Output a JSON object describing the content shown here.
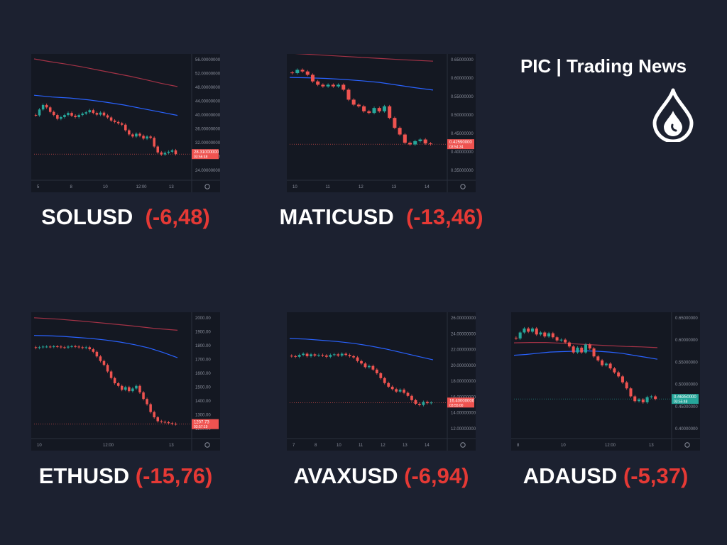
{
  "brand": {
    "title": "PIC | Trading News",
    "logo_icon": "flame-drop-icon"
  },
  "colors": {
    "background": "#1c2130",
    "panel": "#141822",
    "up": "#26a69a",
    "down": "#ef5350",
    "ma_fast": "#2962ff",
    "ma_slow": "#a33246",
    "change_text": "#e53935"
  },
  "chart_data": [
    {
      "type": "candlestick",
      "symbol": "SOLUSD",
      "change": "(-6,48)",
      "x_ticks": [
        "5",
        "8",
        "10",
        "12:00",
        "13"
      ],
      "y_ticks": [
        "56.00000000",
        "52.00000000",
        "48.00000000",
        "44.00000000",
        "40.00000000",
        "36.00000000",
        "32.00000000",
        "28.00000000",
        "24.00000000"
      ],
      "ylim": [
        22,
        56
      ],
      "price_label": "28.31000000",
      "countdown": "03:56:48",
      "price_label_color": "#ef5350",
      "last_price": 28.31,
      "closes": [
        39.5,
        41.2,
        42.5,
        41.8,
        40.5,
        39.6,
        38.5,
        39.0,
        39.6,
        40.2,
        39.4,
        39.0,
        39.6,
        40.0,
        40.4,
        41.0,
        40.2,
        39.7,
        40.3,
        39.5,
        38.9,
        38.0,
        37.6,
        37.2,
        36.8,
        35.2,
        34.0,
        33.4,
        34.2,
        33.6,
        32.8,
        33.4,
        33.0,
        30.5,
        28.8,
        28.2,
        28.7,
        29.0,
        29.4,
        28.31
      ],
      "ma_fast": [
        45.3,
        44.8,
        44.5,
        44.0,
        43.3,
        42.5,
        41.5,
        40.5,
        39.5
      ],
      "ma_slow": [
        55.8,
        55.0,
        54.3,
        53.5,
        52.6,
        51.7,
        50.8,
        49.8,
        48.7,
        47.8
      ]
    },
    {
      "type": "candlestick",
      "symbol": "MATICUSD",
      "change": "(-13,46)",
      "x_ticks": [
        "10",
        "11",
        "12",
        "13",
        "14"
      ],
      "y_ticks": [
        "0.65000000",
        "0.60000000",
        "0.55000000",
        "0.50000000",
        "0.45000000",
        "0.40000000",
        "0.35000000"
      ],
      "ylim": [
        0.33,
        0.685
      ],
      "price_label": "0.42590000",
      "countdown": "03:54:34",
      "price_label_color": "#ef5350",
      "last_price": 0.4259,
      "closes": [
        0.64,
        0.65,
        0.645,
        0.635,
        0.615,
        0.605,
        0.6,
        0.605,
        0.6,
        0.605,
        0.59,
        0.56,
        0.545,
        0.54,
        0.525,
        0.52,
        0.535,
        0.525,
        0.54,
        0.505,
        0.475,
        0.455,
        0.43,
        0.425,
        0.435,
        0.44,
        0.428,
        0.4259
      ],
      "ma_fast": [
        0.627,
        0.626,
        0.624,
        0.621,
        0.617,
        0.612,
        0.604,
        0.596,
        0.589
      ],
      "ma_slow": [
        0.7,
        0.695,
        0.69,
        0.685,
        0.68,
        0.676
      ]
    },
    {
      "type": "candlestick",
      "symbol": "ETHUSD",
      "change": "(-15,76)",
      "x_ticks": [
        "10",
        "12:00",
        "13"
      ],
      "y_ticks": [
        "2000.00",
        "1900.00",
        "1800.00",
        "1700.00",
        "1600.00",
        "1500.00",
        "1400.00",
        "1300.00",
        "1200.00"
      ],
      "ylim": [
        1130,
        2030
      ],
      "price_label": "1207.73",
      "countdown": "03:57:19",
      "price_label_color": "#ef5350",
      "last_price": 1207.73,
      "closes": [
        1790,
        1795,
        1800,
        1800,
        1798,
        1802,
        1800,
        1795,
        1793,
        1800,
        1803,
        1800,
        1795,
        1790,
        1795,
        1780,
        1760,
        1725,
        1690,
        1660,
        1610,
        1560,
        1520,
        1500,
        1470,
        1490,
        1460,
        1480,
        1500,
        1450,
        1400,
        1360,
        1300,
        1260,
        1230,
        1225,
        1222,
        1215,
        1210,
        1207.73
      ],
      "ma_fast": [
        1885,
        1883,
        1878,
        1870,
        1862,
        1850,
        1835,
        1815,
        1790,
        1755,
        1715
      ],
      "ma_slow": [
        2020,
        2010,
        1995,
        1978,
        1960,
        1940,
        1925
      ]
    },
    {
      "type": "candlestick",
      "symbol": "AVAXUSD",
      "change": "(-6,94)",
      "x_ticks": [
        "7",
        "8",
        "10",
        "11",
        "12",
        "13",
        "14"
      ],
      "y_ticks": [
        "26.00000000",
        "24.00000000",
        "22.00000000",
        "20.00000000",
        "18.00000000",
        "16.00000000",
        "14.00000000",
        "12.00000000"
      ],
      "ylim": [
        11.2,
        30.5
      ],
      "price_label": "16.40000000",
      "countdown": "03:55:00",
      "price_label_color": "#ef5350",
      "last_price": 16.4,
      "closes": [
        24.0,
        23.9,
        24.2,
        24.4,
        24.0,
        24.3,
        24.1,
        24.2,
        24.1,
        23.9,
        24.2,
        24.3,
        24.1,
        24.4,
        24.2,
        24.0,
        23.8,
        23.2,
        22.8,
        22.2,
        22.4,
        21.8,
        21.2,
        20.4,
        19.6,
        19.0,
        18.6,
        18.2,
        18.5,
        18.0,
        17.5,
        16.8,
        16.2,
        16.0,
        16.5,
        16.3,
        16.4
      ],
      "ma_fast": [
        26.9,
        26.8,
        26.6,
        26.4,
        26.1,
        25.7,
        25.2,
        24.6,
        24.0,
        23.4
      ],
      "ma_slow": [
        32.5,
        32.0,
        31.5
      ]
    },
    {
      "type": "candlestick",
      "symbol": "ADAUSD",
      "change": "(-5,37)",
      "x_ticks": [
        "8",
        "10",
        "12:00",
        "13"
      ],
      "y_ticks": [
        "0.65000000",
        "0.60000000",
        "0.55000000",
        "0.50000000",
        "0.45000000",
        "0.40000000"
      ],
      "ylim": [
        0.375,
        0.67
      ],
      "price_label": "0.46350000",
      "countdown": "03:55:48",
      "price_label_color": "#26a69a",
      "last_price": 0.4635,
      "closes": [
        0.615,
        0.63,
        0.64,
        0.632,
        0.64,
        0.625,
        0.63,
        0.62,
        0.628,
        0.618,
        0.61,
        0.612,
        0.605,
        0.595,
        0.58,
        0.592,
        0.58,
        0.6,
        0.59,
        0.57,
        0.56,
        0.548,
        0.552,
        0.54,
        0.53,
        0.52,
        0.505,
        0.49,
        0.47,
        0.458,
        0.462,
        0.455,
        0.468,
        0.47,
        0.4635
      ],
      "ma_fast": [
        0.573,
        0.575,
        0.578,
        0.581,
        0.582,
        0.583,
        0.584,
        0.583,
        0.581,
        0.578,
        0.573,
        0.568,
        0.563
      ],
      "ma_slow": [
        0.604,
        0.605,
        0.605,
        0.603,
        0.601,
        0.599,
        0.597,
        0.595,
        0.594,
        0.592
      ]
    }
  ]
}
